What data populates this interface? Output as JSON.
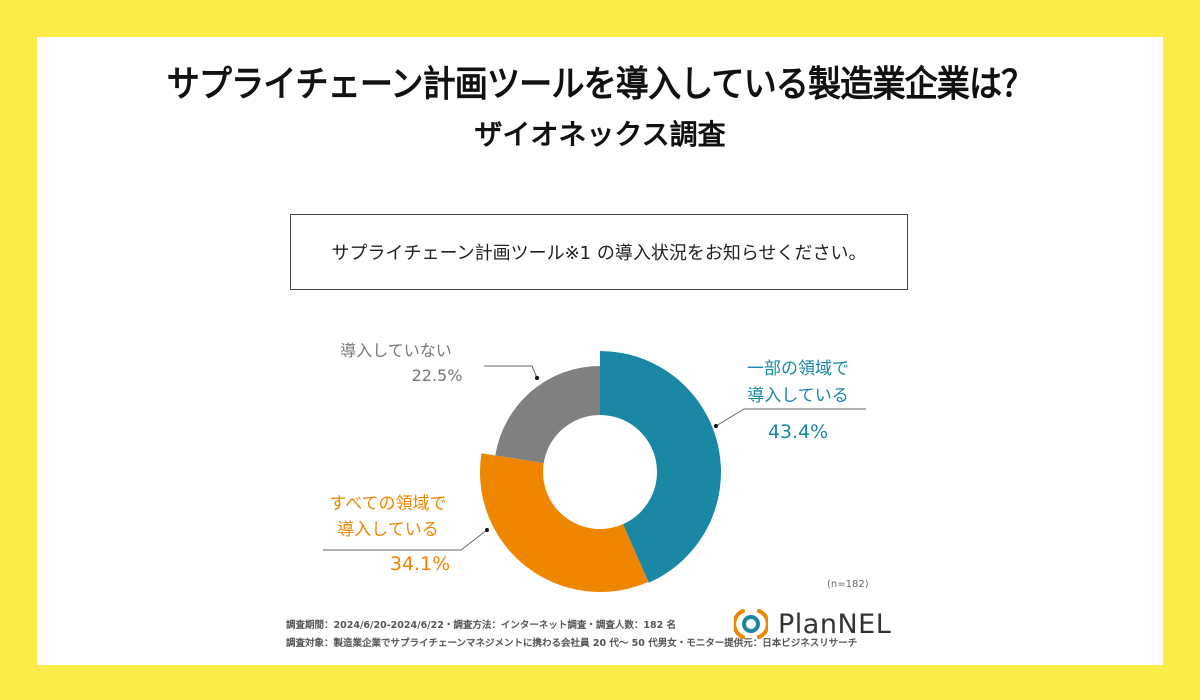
{
  "header": {
    "title": "サプライチェーン計画ツールを導入している製造業企業は？",
    "subtitle": "ザイオネックス調査"
  },
  "question": "サプライチェーン計画ツール※1 の導入状況をお知らせください。",
  "chart_data": {
    "type": "pie",
    "variant": "donut",
    "title": "サプライチェーン計画ツール※1 の導入状況をお知らせください。",
    "sample_size": "(n=182)",
    "slices": [
      {
        "label_line1": "一部の領域で",
        "label_line2": "導入している",
        "label": "一部の領域で導入している",
        "value": 43.4,
        "value_label": "43.4%",
        "color": "#1a87a4"
      },
      {
        "label_line1": "すべての領域で",
        "label_line2": "導入している",
        "label": "すべての領域で導入している",
        "value": 34.1,
        "value_label": "34.1%",
        "color": "#ee8600"
      },
      {
        "label_line1": "導入していない",
        "label_line2": "",
        "label": "導入していない",
        "value": 22.5,
        "value_label": "22.5%",
        "color": "#808080"
      }
    ],
    "start_angle": "12 o'clock",
    "direction": "clockwise"
  },
  "footnotes": {
    "line1": "調査期間：2024/6/20-2024/6/22・調査方法：インターネット調査・調査人数：182 名",
    "line2": "調査対象：製造業企業でサプライチェーンマネジメントに携わる会社員 20 代～ 50 代男女・モニター提供元：日本ビジネスリサーチ"
  },
  "logo": {
    "text": "PlanNEL",
    "colors": {
      "arc": "#ee8600",
      "ring": "#1a87a4"
    }
  },
  "colors": {
    "background": "#fdeb4a",
    "panel": "#ffffff"
  }
}
